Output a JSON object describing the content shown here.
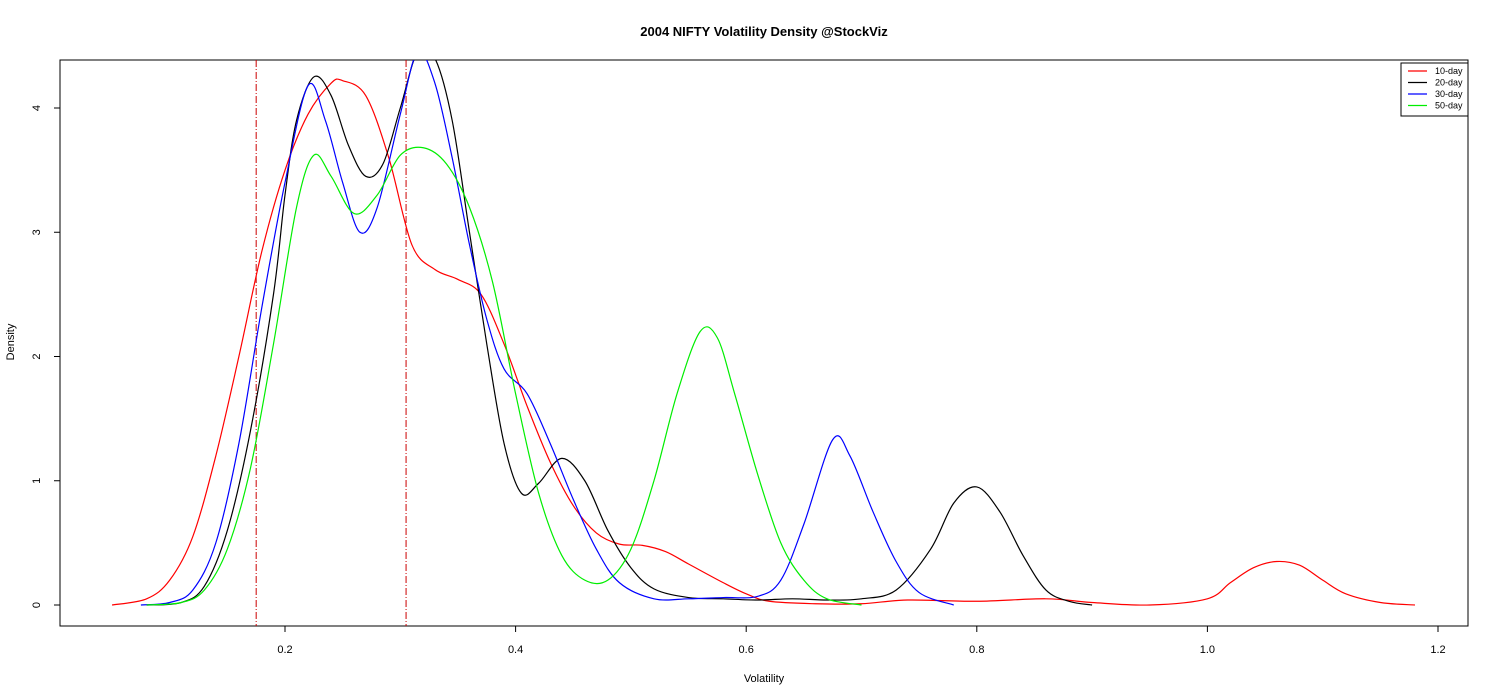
{
  "chart_data": {
    "type": "line",
    "title": "2004 NIFTY Volatility Density @StockViz",
    "xlabel": "Volatility",
    "ylabel": "Density",
    "xlim": [
      0.0,
      1.2
    ],
    "ylim": [
      0,
      4.4
    ],
    "x_ticks": [
      "0.2",
      "0.4",
      "0.6",
      "0.8",
      "1.0",
      "1.2"
    ],
    "y_ticks": [
      "0",
      "1",
      "2",
      "3",
      "4"
    ],
    "legend_position": "top-right",
    "grid": false,
    "vlines": [
      {
        "x": 0.175,
        "color": "#cc0000",
        "style": "dashdot"
      },
      {
        "x": 0.305,
        "color": "#cc0000",
        "style": "dashdot"
      }
    ],
    "series": [
      {
        "name": "10-day",
        "color": "#ff0000",
        "points": [
          [
            0.05,
            0.0
          ],
          [
            0.08,
            0.05
          ],
          [
            0.1,
            0.2
          ],
          [
            0.12,
            0.55
          ],
          [
            0.14,
            1.2
          ],
          [
            0.16,
            2.0
          ],
          [
            0.18,
            2.85
          ],
          [
            0.2,
            3.5
          ],
          [
            0.22,
            3.95
          ],
          [
            0.24,
            4.2
          ],
          [
            0.25,
            4.22
          ],
          [
            0.27,
            4.1
          ],
          [
            0.29,
            3.6
          ],
          [
            0.31,
            2.9
          ],
          [
            0.33,
            2.7
          ],
          [
            0.35,
            2.62
          ],
          [
            0.37,
            2.5
          ],
          [
            0.39,
            2.1
          ],
          [
            0.41,
            1.6
          ],
          [
            0.43,
            1.15
          ],
          [
            0.45,
            0.8
          ],
          [
            0.47,
            0.58
          ],
          [
            0.49,
            0.49
          ],
          [
            0.51,
            0.48
          ],
          [
            0.53,
            0.43
          ],
          [
            0.55,
            0.33
          ],
          [
            0.58,
            0.18
          ],
          [
            0.6,
            0.09
          ],
          [
            0.62,
            0.03
          ],
          [
            0.66,
            0.01
          ],
          [
            0.7,
            0.01
          ],
          [
            0.74,
            0.04
          ],
          [
            0.8,
            0.03
          ],
          [
            0.86,
            0.05
          ],
          [
            0.9,
            0.02
          ],
          [
            0.95,
            0.0
          ],
          [
            1.0,
            0.05
          ],
          [
            1.02,
            0.18
          ],
          [
            1.04,
            0.3
          ],
          [
            1.06,
            0.35
          ],
          [
            1.08,
            0.32
          ],
          [
            1.1,
            0.2
          ],
          [
            1.12,
            0.09
          ],
          [
            1.15,
            0.02
          ],
          [
            1.18,
            0.0
          ]
        ]
      },
      {
        "name": "20-day",
        "color": "#000000",
        "points": [
          [
            0.08,
            0.0
          ],
          [
            0.11,
            0.02
          ],
          [
            0.13,
            0.15
          ],
          [
            0.15,
            0.6
          ],
          [
            0.17,
            1.4
          ],
          [
            0.19,
            2.5
          ],
          [
            0.2,
            3.3
          ],
          [
            0.21,
            3.9
          ],
          [
            0.225,
            4.25
          ],
          [
            0.24,
            4.1
          ],
          [
            0.255,
            3.7
          ],
          [
            0.27,
            3.45
          ],
          [
            0.285,
            3.55
          ],
          [
            0.3,
            4.0
          ],
          [
            0.315,
            4.45
          ],
          [
            0.33,
            4.4
          ],
          [
            0.345,
            3.9
          ],
          [
            0.36,
            3.0
          ],
          [
            0.375,
            2.1
          ],
          [
            0.39,
            1.3
          ],
          [
            0.405,
            0.9
          ],
          [
            0.42,
            0.98
          ],
          [
            0.44,
            1.18
          ],
          [
            0.46,
            1.0
          ],
          [
            0.48,
            0.6
          ],
          [
            0.5,
            0.3
          ],
          [
            0.52,
            0.13
          ],
          [
            0.55,
            0.06
          ],
          [
            0.58,
            0.05
          ],
          [
            0.61,
            0.04
          ],
          [
            0.64,
            0.05
          ],
          [
            0.67,
            0.04
          ],
          [
            0.7,
            0.05
          ],
          [
            0.73,
            0.12
          ],
          [
            0.76,
            0.45
          ],
          [
            0.78,
            0.82
          ],
          [
            0.8,
            0.95
          ],
          [
            0.82,
            0.75
          ],
          [
            0.84,
            0.4
          ],
          [
            0.86,
            0.12
          ],
          [
            0.88,
            0.03
          ],
          [
            0.9,
            0.0
          ]
        ]
      },
      {
        "name": "30-day",
        "color": "#0000ff",
        "points": [
          [
            0.075,
            0.0
          ],
          [
            0.1,
            0.02
          ],
          [
            0.12,
            0.12
          ],
          [
            0.14,
            0.5
          ],
          [
            0.16,
            1.3
          ],
          [
            0.18,
            2.4
          ],
          [
            0.2,
            3.4
          ],
          [
            0.22,
            4.18
          ],
          [
            0.235,
            3.9
          ],
          [
            0.25,
            3.4
          ],
          [
            0.265,
            3.0
          ],
          [
            0.28,
            3.2
          ],
          [
            0.3,
            3.95
          ],
          [
            0.315,
            4.45
          ],
          [
            0.33,
            4.2
          ],
          [
            0.345,
            3.6
          ],
          [
            0.36,
            2.9
          ],
          [
            0.375,
            2.3
          ],
          [
            0.39,
            1.9
          ],
          [
            0.41,
            1.7
          ],
          [
            0.43,
            1.3
          ],
          [
            0.45,
            0.85
          ],
          [
            0.47,
            0.45
          ],
          [
            0.49,
            0.18
          ],
          [
            0.52,
            0.05
          ],
          [
            0.55,
            0.05
          ],
          [
            0.58,
            0.06
          ],
          [
            0.61,
            0.07
          ],
          [
            0.63,
            0.2
          ],
          [
            0.65,
            0.65
          ],
          [
            0.675,
            1.33
          ],
          [
            0.69,
            1.2
          ],
          [
            0.71,
            0.75
          ],
          [
            0.73,
            0.35
          ],
          [
            0.75,
            0.1
          ],
          [
            0.78,
            0.0
          ]
        ]
      },
      {
        "name": "50-day",
        "color": "#00ee00",
        "points": [
          [
            0.08,
            0.0
          ],
          [
            0.11,
            0.02
          ],
          [
            0.13,
            0.12
          ],
          [
            0.15,
            0.45
          ],
          [
            0.17,
            1.1
          ],
          [
            0.19,
            2.1
          ],
          [
            0.21,
            3.2
          ],
          [
            0.225,
            3.62
          ],
          [
            0.24,
            3.45
          ],
          [
            0.26,
            3.15
          ],
          [
            0.28,
            3.3
          ],
          [
            0.3,
            3.62
          ],
          [
            0.32,
            3.68
          ],
          [
            0.34,
            3.55
          ],
          [
            0.36,
            3.2
          ],
          [
            0.38,
            2.6
          ],
          [
            0.4,
            1.7
          ],
          [
            0.42,
            0.9
          ],
          [
            0.44,
            0.4
          ],
          [
            0.46,
            0.2
          ],
          [
            0.48,
            0.2
          ],
          [
            0.5,
            0.45
          ],
          [
            0.52,
            1.0
          ],
          [
            0.54,
            1.7
          ],
          [
            0.56,
            2.2
          ],
          [
            0.575,
            2.15
          ],
          [
            0.59,
            1.7
          ],
          [
            0.61,
            1.05
          ],
          [
            0.63,
            0.5
          ],
          [
            0.65,
            0.2
          ],
          [
            0.67,
            0.05
          ],
          [
            0.7,
            0.0
          ]
        ]
      }
    ]
  }
}
